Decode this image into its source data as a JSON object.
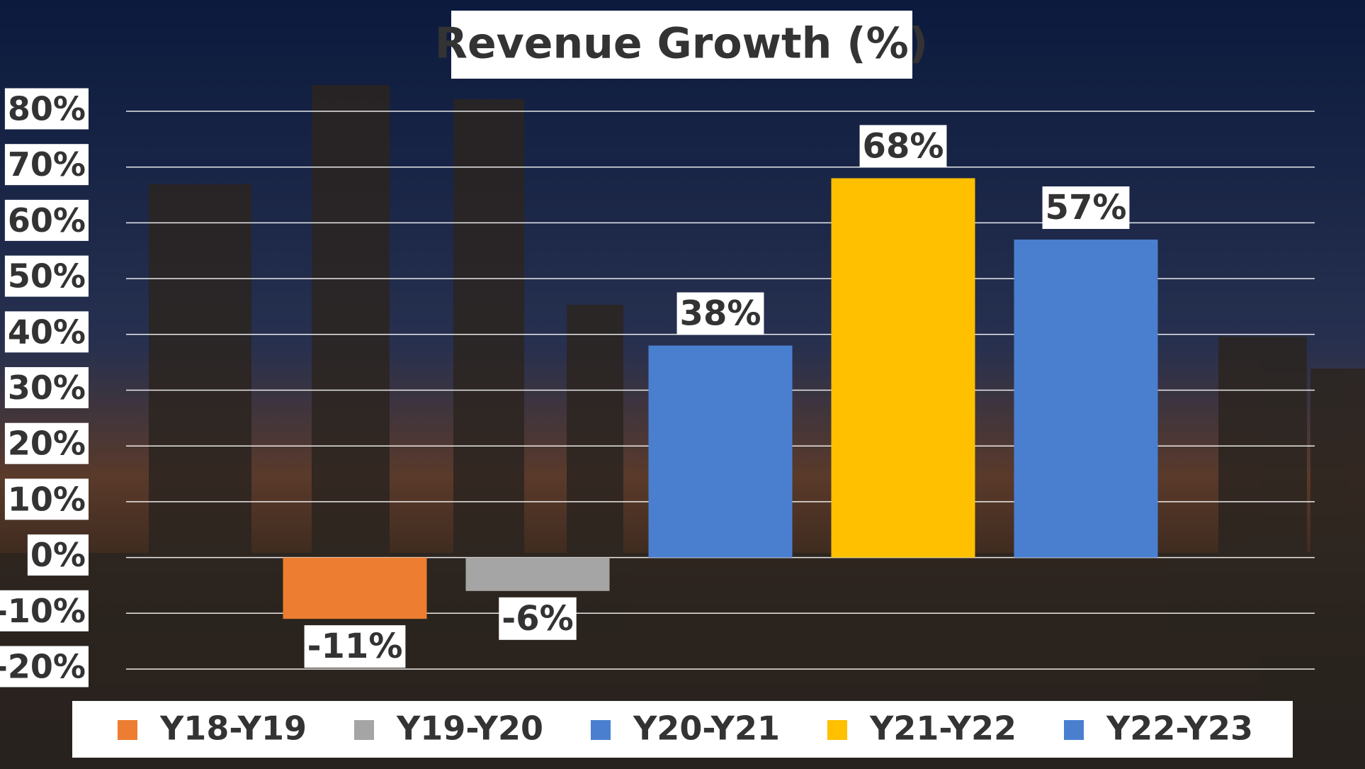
{
  "chart_data": {
    "type": "bar",
    "title": "Revenue Growth (%)",
    "categories": [
      "Y18-Y19",
      "Y19-Y20",
      "Y20-Y21",
      "Y21-Y22",
      "Y22-Y23"
    ],
    "values": [
      -11,
      -6,
      38,
      68,
      57
    ],
    "value_labels": [
      "-11%",
      "-6%",
      "38%",
      "68%",
      "57%"
    ],
    "colors": [
      "#ed7d31",
      "#a5a5a5",
      "#4a7fd0",
      "#ffc000",
      "#4a7fd0"
    ],
    "ylim": [
      -20,
      80
    ],
    "yticks": [
      {
        "value": -20,
        "label": "-20%"
      },
      {
        "value": -10,
        "label": "-10%"
      },
      {
        "value": 0,
        "label": "0%"
      },
      {
        "value": 10,
        "label": "10%"
      },
      {
        "value": 20,
        "label": "20%"
      },
      {
        "value": 30,
        "label": "30%"
      },
      {
        "value": 40,
        "label": "40%"
      },
      {
        "value": 50,
        "label": "50%"
      },
      {
        "value": 60,
        "label": "60%"
      },
      {
        "value": 70,
        "label": "70%"
      },
      {
        "value": 80,
        "label": "80%"
      }
    ],
    "grid": true,
    "legend": "bottom"
  }
}
